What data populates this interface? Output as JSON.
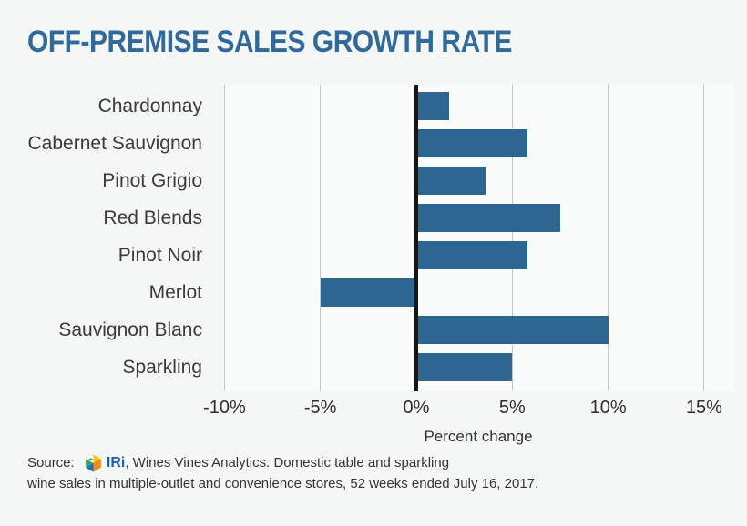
{
  "chart_data": {
    "type": "bar",
    "orientation": "horizontal",
    "title": "OFF-PREMISE SALES GROWTH RATE",
    "categories": [
      "Chardonnay",
      "Cabernet Sauvignon",
      "Pinot Grigio",
      "Red Blends",
      "Pinot Noir",
      "Merlot",
      "Sauvignon Blanc",
      "Sparkling"
    ],
    "values": [
      1.7,
      5.8,
      3.6,
      7.5,
      5.8,
      -5,
      10,
      5
    ],
    "xlabel": "Percent change",
    "x_ticks": [
      "-10%",
      "-5%",
      "0%",
      "5%",
      "10%",
      "15%"
    ],
    "x_tick_values": [
      -10,
      -5,
      0,
      5,
      10,
      15
    ],
    "xlim": [
      -12,
      16.5
    ],
    "grid": "vertical",
    "legend": "none",
    "bar_color": "#2d6690",
    "zero_line_color": "#161616",
    "units": "percent"
  },
  "source": {
    "prefix": "Source: ",
    "logo": "iri-logo",
    "brand": "IRi",
    "line1_rest": ", Wines Vines Analytics. Domestic table and sparkling",
    "line2": "wine sales in multiple-outlet and convenience stores, 52 weeks ended July 16, 2017."
  },
  "colors": {
    "page_background": "#f5f6f6",
    "plot_background": "#fafbfb",
    "title_text": "#31699a",
    "bar": "#2d6690",
    "gridline": "#c6c6c6",
    "zero_line": "#161616",
    "label_text": "#3a3a3a",
    "tick_text": "#2f2f2f",
    "source_text": "#333333",
    "iri_brand_blue": "#1d5fae"
  }
}
